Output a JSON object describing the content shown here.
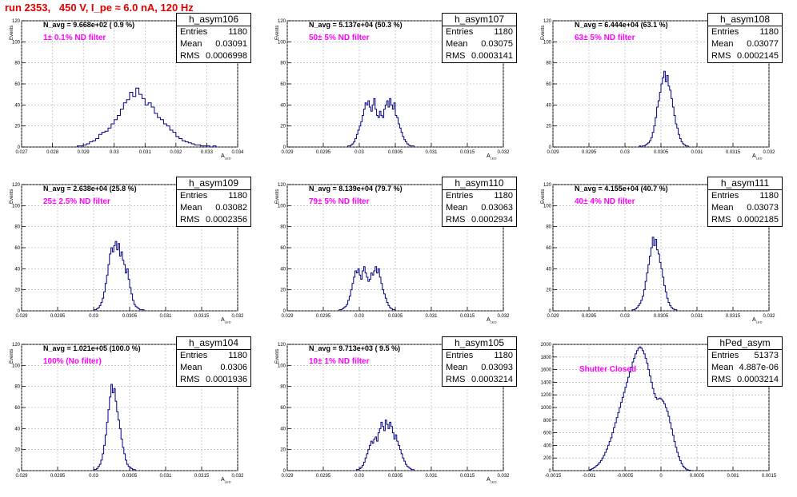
{
  "run_title": "run 2353,   450 V, I_pe ≈ 6.0 nA, 120 Hz",
  "colors": {
    "line": "#000080",
    "filter_text": "#ff00ff",
    "title": "#e00000",
    "grid": "#aaaaaa"
  },
  "chart_data": [
    {
      "type": "histogram",
      "name": "h_asym106",
      "entries": "1180",
      "mean": "0.03091",
      "rms": "0.0006998",
      "n_avg": "N_avg = 9.668e+02 ( 0.9 %)",
      "filter": "1± 0.1% ND filter",
      "ylabel": "Events",
      "xlabel": "A_{LED}",
      "xlim": [
        0.027,
        0.034
      ],
      "ylim": [
        0,
        120
      ],
      "xticks": [
        "0.027",
        "0.028",
        "0.029",
        "0.03",
        "0.031",
        "0.032",
        "0.033",
        "0.034"
      ],
      "xtick_values": [
        0.027,
        0.028,
        0.029,
        0.03,
        0.031,
        0.032,
        0.033,
        0.034
      ],
      "yticks": [
        0,
        20,
        40,
        60,
        80,
        100,
        120
      ],
      "bin_width": 0.0001,
      "bins_x0": 0.0288,
      "counts": [
        1,
        1,
        2,
        3,
        5,
        6,
        8,
        12,
        14,
        15,
        18,
        22,
        26,
        30,
        36,
        42,
        45,
        52,
        48,
        56,
        50,
        46,
        40,
        42,
        38,
        32,
        28,
        26,
        22,
        20,
        16,
        14,
        10,
        8,
        6,
        5,
        4,
        3,
        2,
        2,
        1,
        1,
        1,
        0,
        1
      ]
    },
    {
      "type": "histogram",
      "name": "h_asym107",
      "entries": "1180",
      "mean": "0.03075",
      "rms": "0.0003141",
      "n_avg": "N_avg = 5.137e+04 (50.3 %)",
      "filter": "50± 5% ND filter",
      "ylabel": "Events",
      "xlabel": "A_{LED}",
      "xlim": [
        0.029,
        0.032
      ],
      "ylim": [
        0,
        120
      ],
      "xticks": [
        "0.029",
        "0.0295",
        "0.03",
        "0.0305",
        "0.031",
        "0.0315",
        "0.032"
      ],
      "xtick_values": [
        0.029,
        0.0295,
        0.03,
        0.0305,
        0.031,
        0.0315,
        0.032
      ],
      "yticks": [
        0,
        20,
        40,
        60,
        80,
        100,
        120
      ],
      "bin_width": 2e-05,
      "bins_x0": 0.02984,
      "counts": [
        1,
        1,
        2,
        3,
        5,
        8,
        12,
        16,
        20,
        24,
        30,
        36,
        42,
        40,
        44,
        38,
        34,
        40,
        46,
        36,
        30,
        28,
        34,
        30,
        28,
        36,
        40,
        44,
        38,
        46,
        40,
        36,
        42,
        30,
        28,
        22,
        18,
        14,
        10,
        7,
        5,
        3,
        2,
        1,
        1,
        1
      ]
    },
    {
      "type": "histogram",
      "name": "h_asym108",
      "entries": "1180",
      "mean": "0.03077",
      "rms": "0.0002145",
      "n_avg": "N_avg = 6.444e+04 (63.1 %)",
      "filter": "63± 5% ND filter",
      "ylabel": "Events",
      "xlabel": "A_{LED}",
      "xlim": [
        0.029,
        0.032
      ],
      "ylim": [
        0,
        120
      ],
      "xticks": [
        "0.029",
        "0.0295",
        "0.03",
        "0.0305",
        "0.031",
        "0.0315",
        "0.032"
      ],
      "xtick_values": [
        0.029,
        0.0295,
        0.03,
        0.0305,
        0.031,
        0.0315,
        0.032
      ],
      "yticks": [
        0,
        20,
        40,
        60,
        80,
        100,
        120
      ],
      "bin_width": 2e-05,
      "bins_x0": 0.0302,
      "counts": [
        1,
        0,
        1,
        1,
        2,
        3,
        4,
        6,
        9,
        14,
        20,
        28,
        38,
        44,
        52,
        60,
        66,
        72,
        62,
        68,
        58,
        54,
        46,
        38,
        30,
        22,
        18,
        12,
        8,
        5,
        3,
        2,
        1,
        1
      ]
    },
    {
      "type": "histogram",
      "name": "h_asym109",
      "entries": "1180",
      "mean": "0.03082",
      "rms": "0.0002356",
      "n_avg": "N_avg = 2.638e+04 (25.8 %)",
      "filter": "25± 2.5% ND filter",
      "ylabel": "Events",
      "xlabel": "A_{LED}",
      "xlim": [
        0.029,
        0.032
      ],
      "ylim": [
        0,
        120
      ],
      "xticks": [
        "0.029",
        "0.0295",
        "0.03",
        "0.0305",
        "0.031",
        "0.0315",
        "0.032"
      ],
      "xtick_values": [
        0.029,
        0.0295,
        0.03,
        0.0305,
        0.031,
        0.0315,
        0.032
      ],
      "yticks": [
        0,
        20,
        40,
        60,
        80,
        100,
        120
      ],
      "bin_width": 2e-05,
      "bins_x0": 0.03,
      "counts": [
        1,
        1,
        2,
        3,
        5,
        8,
        12,
        18,
        26,
        34,
        44,
        54,
        60,
        56,
        62,
        66,
        58,
        64,
        52,
        56,
        48,
        44,
        36,
        40,
        30,
        22,
        16,
        10,
        6,
        4,
        3,
        2,
        1,
        1,
        1
      ]
    },
    {
      "type": "histogram",
      "name": "h_asym110",
      "entries": "1180",
      "mean": "0.03063",
      "rms": "0.0002934",
      "n_avg": "N_avg = 8.139e+04 (79.7 %)",
      "filter": "79± 5% ND filter",
      "ylabel": "Events",
      "xlabel": "A_{LED}",
      "xlim": [
        0.029,
        0.032
      ],
      "ylim": [
        0,
        120
      ],
      "xticks": [
        "0.029",
        "0.0295",
        "0.03",
        "0.0305",
        "0.031",
        "0.0315",
        "0.032"
      ],
      "xtick_values": [
        0.029,
        0.0295,
        0.03,
        0.0305,
        0.031,
        0.0315,
        0.032
      ],
      "yticks": [
        0,
        20,
        40,
        60,
        80,
        100,
        120
      ],
      "bin_width": 2e-05,
      "bins_x0": 0.02972,
      "counts": [
        1,
        1,
        2,
        3,
        4,
        6,
        10,
        14,
        20,
        26,
        32,
        38,
        36,
        40,
        34,
        30,
        38,
        42,
        36,
        32,
        28,
        30,
        36,
        34,
        38,
        42,
        36,
        40,
        32,
        26,
        20,
        16,
        12,
        8,
        5,
        3,
        2,
        1,
        1
      ]
    },
    {
      "type": "histogram",
      "name": "h_asym111",
      "entries": "1180",
      "mean": "0.03073",
      "rms": "0.0002185",
      "n_avg": "N_avg = 4.155e+04 (40.7 %)",
      "filter": "40± 4% ND filter",
      "ylabel": "Events",
      "xlabel": "A_{LED}",
      "xlim": [
        0.029,
        0.032
      ],
      "ylim": [
        0,
        120
      ],
      "xticks": [
        "0.029",
        "0.0295",
        "0.03",
        "0.0305",
        "0.031",
        "0.0315",
        "0.032"
      ],
      "xtick_values": [
        0.029,
        0.0295,
        0.03,
        0.0305,
        0.031,
        0.0315,
        0.032
      ],
      "yticks": [
        0,
        20,
        40,
        60,
        80,
        100,
        120
      ],
      "bin_width": 2e-05,
      "bins_x0": 0.0301,
      "counts": [
        1,
        1,
        2,
        3,
        5,
        7,
        10,
        14,
        20,
        28,
        36,
        44,
        52,
        60,
        70,
        62,
        68,
        58,
        54,
        46,
        40,
        32,
        24,
        18,
        12,
        8,
        5,
        3,
        2,
        1,
        1
      ]
    },
    {
      "type": "histogram",
      "name": "h_asym104",
      "entries": "1180",
      "mean": "0.0306",
      "rms": "0.0001936",
      "n_avg": "N_avg = 1.021e+05 (100.0 %)",
      "filter": "100% (No filter)",
      "ylabel": "Events",
      "xlabel": "A_{LED}",
      "xlim": [
        0.029,
        0.032
      ],
      "ylim": [
        0,
        120
      ],
      "xticks": [
        "0.029",
        "0.0295",
        "0.03",
        "0.0305",
        "0.031",
        "0.0315",
        "0.032"
      ],
      "xtick_values": [
        0.029,
        0.0295,
        0.03,
        0.0305,
        0.031,
        0.0315,
        0.032
      ],
      "yticks": [
        0,
        20,
        40,
        60,
        80,
        100,
        120
      ],
      "bin_width": 2e-05,
      "bins_x0": 0.03,
      "counts": [
        1,
        1,
        2,
        4,
        6,
        10,
        16,
        24,
        34,
        46,
        58,
        70,
        82,
        74,
        78,
        66,
        56,
        48,
        40,
        30,
        22,
        16,
        10,
        6,
        4,
        3,
        2,
        1,
        1
      ]
    },
    {
      "type": "histogram",
      "name": "h_asym105",
      "entries": "1180",
      "mean": "0.03093",
      "rms": "0.0003214",
      "n_avg": "N_avg = 9.713e+03 ( 9.5 %)",
      "filter": "10± 1% ND filter",
      "ylabel": "Events",
      "xlabel": "A_{LED}",
      "xlim": [
        0.029,
        0.032
      ],
      "ylim": [
        0,
        120
      ],
      "xticks": [
        "0.029",
        "0.0295",
        "0.03",
        "0.0305",
        "0.031",
        "0.0315",
        "0.032"
      ],
      "xtick_values": [
        0.029,
        0.0295,
        0.03,
        0.0305,
        0.031,
        0.0315,
        0.032
      ],
      "yticks": [
        0,
        20,
        40,
        60,
        80,
        100,
        120
      ],
      "bin_width": 2e-05,
      "bins_x0": 0.02996,
      "counts": [
        1,
        1,
        2,
        3,
        5,
        8,
        12,
        16,
        20,
        24,
        28,
        26,
        30,
        32,
        28,
        36,
        40,
        46,
        42,
        38,
        48,
        44,
        40,
        46,
        42,
        36,
        30,
        34,
        28,
        24,
        20,
        16,
        12,
        9,
        6,
        4,
        3,
        2,
        1,
        1
      ]
    },
    {
      "type": "histogram",
      "name": "hPed_asym",
      "entries": "51373",
      "mean": "4.887e-06",
      "rms": "0.0003214",
      "n_avg": "",
      "filter": "Shutter Closed",
      "ylabel": "",
      "xlabel": "",
      "xlim": [
        -0.0015,
        0.0015
      ],
      "ylim": [
        0,
        2000
      ],
      "xticks": [
        "-0.0015",
        "-0.001",
        "-0.0005",
        "0",
        "0.0005",
        "0.001",
        "0.0015"
      ],
      "xtick_values": [
        -0.0015,
        -0.001,
        -0.0005,
        0,
        0.0005,
        0.001,
        0.0015
      ],
      "yticks": [
        0,
        200,
        400,
        600,
        800,
        1000,
        1200,
        1400,
        1600,
        1800,
        2000
      ],
      "bin_width": 2e-05,
      "bins_x0": -0.001,
      "counts": [
        10,
        20,
        30,
        45,
        60,
        80,
        100,
        130,
        160,
        200,
        240,
        290,
        340,
        400,
        460,
        520,
        600,
        680,
        760,
        840,
        920,
        1000,
        1080,
        1160,
        1240,
        1320,
        1400,
        1480,
        1560,
        1640,
        1720,
        1780,
        1850,
        1900,
        1940,
        1960,
        1940,
        1900,
        1850,
        1780,
        1700,
        1600,
        1500,
        1400,
        1300,
        1220,
        1160,
        1130,
        1140,
        1150,
        1130,
        1100,
        1060,
        1000,
        940,
        860,
        760,
        660,
        560,
        460,
        370,
        290,
        220,
        160,
        110,
        70,
        45,
        25,
        15,
        8,
        4
      ]
    }
  ]
}
